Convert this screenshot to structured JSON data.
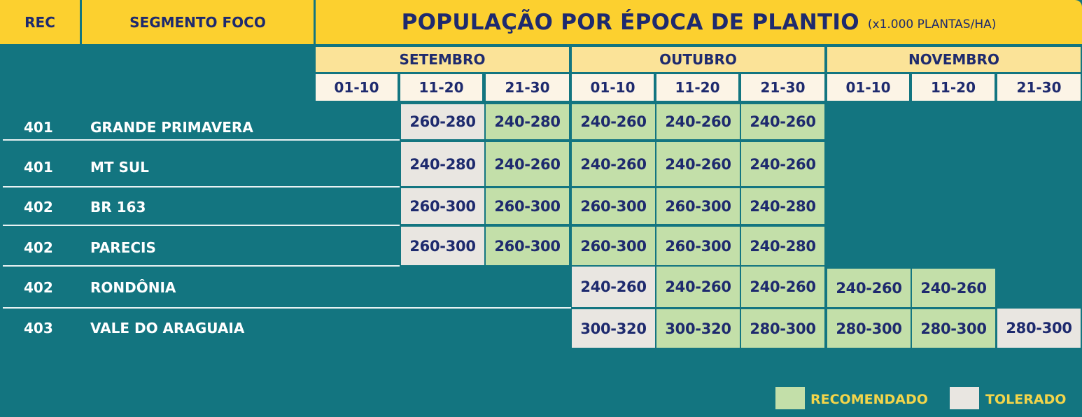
{
  "header": {
    "rec": "REC",
    "segmento": "SEGMENTO FOCO",
    "title": "POPULAÇÃO POR ÉPOCA DE PLANTIO",
    "unit": "(x1.000 PLANTAS/HA)"
  },
  "months": [
    "SETEMBRO",
    "OUTUBRO",
    "NOVEMBRO"
  ],
  "periods": [
    "01-10",
    "11-20",
    "21-30",
    "01-10",
    "11-20",
    "21-30",
    "01-10",
    "11-20",
    "21-30"
  ],
  "rows": [
    {
      "rec": "401",
      "segment": "GRANDE PRIMAVERA"
    },
    {
      "rec": "401",
      "segment": "MT SUL"
    },
    {
      "rec": "402",
      "segment": "BR 163"
    },
    {
      "rec": "402",
      "segment": "PARECIS"
    },
    {
      "rec": "402",
      "segment": "RONDÔNIA"
    },
    {
      "rec": "403",
      "segment": "VALE DO ARAGUAIA"
    }
  ],
  "cells": [
    [
      "260-280",
      "240-280",
      "240-260",
      "240-260",
      "240-260"
    ],
    [
      "240-280",
      "240-260",
      "240-260",
      "240-260",
      "240-260"
    ],
    [
      "260-300",
      "260-300",
      "260-300",
      "260-300",
      "240-280"
    ],
    [
      "260-300",
      "260-300",
      "260-300",
      "260-300",
      "240-280"
    ],
    [
      "240-260",
      "240-260",
      "240-260",
      "240-260",
      "240-260"
    ],
    [
      "300-320",
      "300-320",
      "280-300",
      "280-300",
      "280-300",
      "280-300"
    ]
  ],
  "legend": {
    "recomendado": "RECOMENDADO",
    "tolerado": "TOLERADO"
  },
  "colors": {
    "background": "#137580",
    "header": "#fcd02f",
    "recomendado": "#c3dfa9",
    "tolerado": "#e9e6e1",
    "text_dark": "#1e2a6e"
  }
}
